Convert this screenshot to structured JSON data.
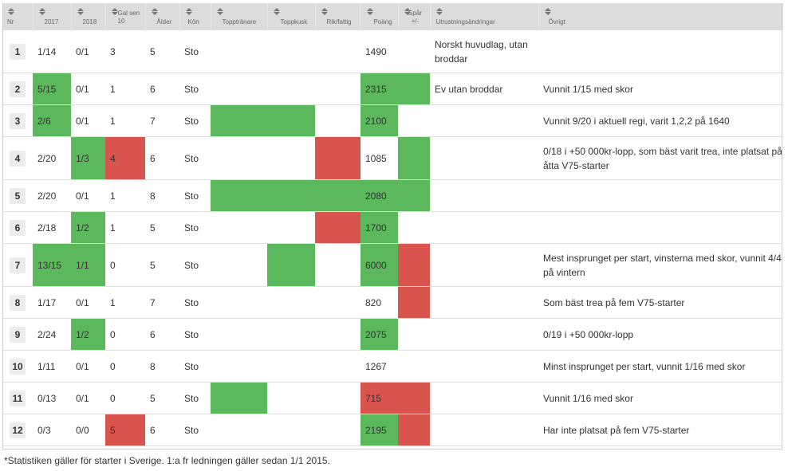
{
  "headers": [
    {
      "key": "nr",
      "label": "Nr"
    },
    {
      "key": "y2017",
      "label": "2017"
    },
    {
      "key": "y2018",
      "label": "2018"
    },
    {
      "key": "gal",
      "label": "Gal sen 10"
    },
    {
      "key": "alder",
      "label": "Ålder"
    },
    {
      "key": "kon",
      "label": "Kön"
    },
    {
      "key": "topptranare",
      "label": "Topptränare"
    },
    {
      "key": "toppkusk",
      "label": "Toppkusk"
    },
    {
      "key": "rikfattig",
      "label": "Rik/fattig"
    },
    {
      "key": "poang",
      "label": "Poäng"
    },
    {
      "key": "spar",
      "label": "Spår +/-"
    },
    {
      "key": "utrustning",
      "label": "Utrustningsändringar"
    },
    {
      "key": "ovrigt",
      "label": "Övrigt"
    }
  ],
  "colors": {
    "green": "#5cb85c",
    "red": "#d9534f",
    "header_bg": "#dcdcdc"
  },
  "rows": [
    {
      "nr": "1",
      "y2017": "1/14",
      "y2018": "0/1",
      "gal": "3",
      "alder": "5",
      "kon": "Sto",
      "poang": "1490",
      "utrustning": "Norskt huvudlag, utan broddar",
      "ovrigt": "",
      "hl": {}
    },
    {
      "nr": "2",
      "y2017": "5/15",
      "y2018": "0/1",
      "gal": "1",
      "alder": "6",
      "kon": "Sto",
      "poang": "2315",
      "utrustning": "Ev utan broddar",
      "ovrigt": "Vunnit 1/15 med skor",
      "hl": {
        "y2017": "g",
        "poang": "g",
        "spar": "g"
      }
    },
    {
      "nr": "3",
      "y2017": "2/6",
      "y2018": "0/1",
      "gal": "1",
      "alder": "7",
      "kon": "Sto",
      "poang": "2100",
      "utrustning": "",
      "ovrigt": "Vunnit 9/20 i aktuell regi, varit 1,2,2 på 1640",
      "hl": {
        "y2017": "g",
        "topptranare": "g",
        "toppkusk": "g",
        "poang": "g"
      }
    },
    {
      "nr": "4",
      "y2017": "2/20",
      "y2018": "1/3",
      "gal": "4",
      "alder": "6",
      "kon": "Sto",
      "poang": "1085",
      "utrustning": "",
      "ovrigt": "0/18 i +50 000kr-lopp, som bäst varit trea, inte platsat på åtta V75-starter",
      "hl": {
        "y2018": "g",
        "gal": "r",
        "rikfattig": "r",
        "spar": "g"
      }
    },
    {
      "nr": "5",
      "y2017": "2/20",
      "y2018": "0/1",
      "gal": "1",
      "alder": "8",
      "kon": "Sto",
      "poang": "2080",
      "utrustning": "",
      "ovrigt": "",
      "hl": {
        "topptranare": "g",
        "toppkusk": "g",
        "rikfattig": "g",
        "poang": "g",
        "spar": "g"
      }
    },
    {
      "nr": "6",
      "y2017": "2/18",
      "y2018": "1/2",
      "gal": "1",
      "alder": "5",
      "kon": "Sto",
      "poang": "1700",
      "utrustning": "",
      "ovrigt": "",
      "hl": {
        "y2018": "g",
        "rikfattig": "r",
        "poang": "g"
      }
    },
    {
      "nr": "7",
      "y2017": "13/15",
      "y2018": "1/1",
      "gal": "0",
      "alder": "5",
      "kon": "Sto",
      "poang": "6000",
      "utrustning": "",
      "ovrigt": "Mest insprunget per start, vinsterna med skor, vunnit 4/4 på vintern",
      "hl": {
        "y2017": "g",
        "y2018": "g",
        "toppkusk": "g",
        "poang": "g",
        "spar": "r"
      }
    },
    {
      "nr": "8",
      "y2017": "1/17",
      "y2018": "0/1",
      "gal": "1",
      "alder": "7",
      "kon": "Sto",
      "poang": "820",
      "utrustning": "",
      "ovrigt": "Som bäst trea på fem V75-starter",
      "hl": {
        "spar": "r"
      }
    },
    {
      "nr": "9",
      "y2017": "2/24",
      "y2018": "1/2",
      "gal": "0",
      "alder": "6",
      "kon": "Sto",
      "poang": "2075",
      "utrustning": "",
      "ovrigt": "0/19 i +50 000kr-lopp",
      "hl": {
        "y2018": "g",
        "poang": "g"
      }
    },
    {
      "nr": "10",
      "y2017": "1/11",
      "y2018": "0/1",
      "gal": "0",
      "alder": "8",
      "kon": "Sto",
      "poang": "1267",
      "utrustning": "",
      "ovrigt": "Minst insprunget per start, vunnit 1/16 med skor",
      "hl": {}
    },
    {
      "nr": "11",
      "y2017": "0/13",
      "y2018": "0/1",
      "gal": "0",
      "alder": "5",
      "kon": "Sto",
      "poang": "715",
      "utrustning": "",
      "ovrigt": "Vunnit 1/16 med skor",
      "hl": {
        "topptranare": "g",
        "poang": "r",
        "spar": "r"
      }
    },
    {
      "nr": "12",
      "y2017": "0/3",
      "y2018": "0/0",
      "gal": "5",
      "alder": "6",
      "kon": "Sto",
      "poang": "2195",
      "utrustning": "",
      "ovrigt": "Har inte platsat på fem V75-starter",
      "hl": {
        "gal": "r",
        "poang": "g",
        "spar": "r"
      }
    }
  ],
  "footnote": "*Statistiken gäller för starter i Sverige. 1:a fr ledningen gäller sedan 1/1 2015."
}
